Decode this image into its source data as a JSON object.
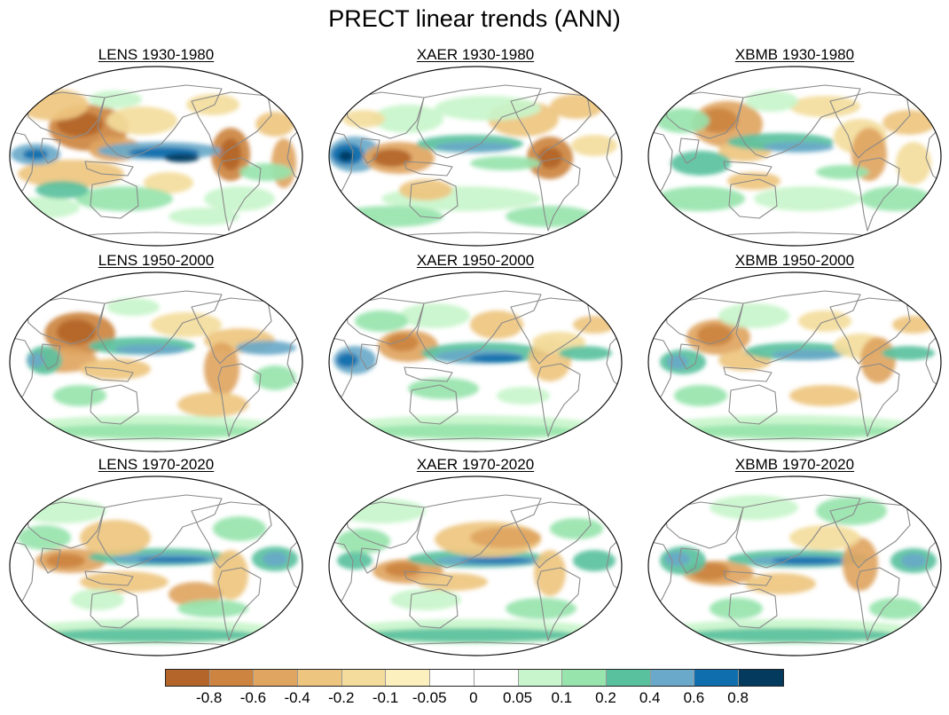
{
  "figure": {
    "title": "PRECT linear trends (ANN)"
  },
  "panels": [
    {
      "model": "LENS",
      "period": "1930-1980",
      "label": "LENS 1930-1980",
      "pattern": "lens30"
    },
    {
      "model": "XAER",
      "period": "1930-1980",
      "label": "XAER 1930-1980",
      "pattern": "xaer30"
    },
    {
      "model": "XBMB",
      "period": "1930-1980",
      "label": "XBMB 1930-1980",
      "pattern": "xbmb30"
    },
    {
      "model": "LENS",
      "period": "1950-2000",
      "label": "LENS 1950-2000",
      "pattern": "lens50"
    },
    {
      "model": "XAER",
      "period": "1950-2000",
      "label": "XAER 1950-2000",
      "pattern": "xaer50"
    },
    {
      "model": "XBMB",
      "period": "1950-2000",
      "label": "XBMB 1950-2000",
      "pattern": "xbmb50"
    },
    {
      "model": "LENS",
      "period": "1970-2020",
      "label": "LENS 1970-2020",
      "pattern": "lens70"
    },
    {
      "model": "XAER",
      "period": "1970-2020",
      "label": "XAER 1970-2020",
      "pattern": "xaer70"
    },
    {
      "model": "XBMB",
      "period": "1970-2020",
      "label": "XBMB 1970-2020",
      "pattern": "xbmb70"
    }
  ],
  "colorbar": {
    "levels": [
      "-0.8",
      "-0.6",
      "-0.4",
      "-0.2",
      "-0.1",
      "-0.05",
      "0",
      "0.05",
      "0.1",
      "0.2",
      "0.4",
      "0.6",
      "0.8"
    ],
    "colors": [
      "#b4662a",
      "#cc8440",
      "#dfa561",
      "#eec57f",
      "#f3dc9c",
      "#fbf0be",
      "#ffffff",
      "#ffffff",
      "#c8f5cb",
      "#97e4ad",
      "#5ac19e",
      "#6aa9c9",
      "#0f6fae",
      "#053a5f"
    ]
  },
  "map_style": {
    "ocean_color": "#ffffff",
    "coast_color": "#8a8a8a",
    "outline_color": "#111111"
  }
}
